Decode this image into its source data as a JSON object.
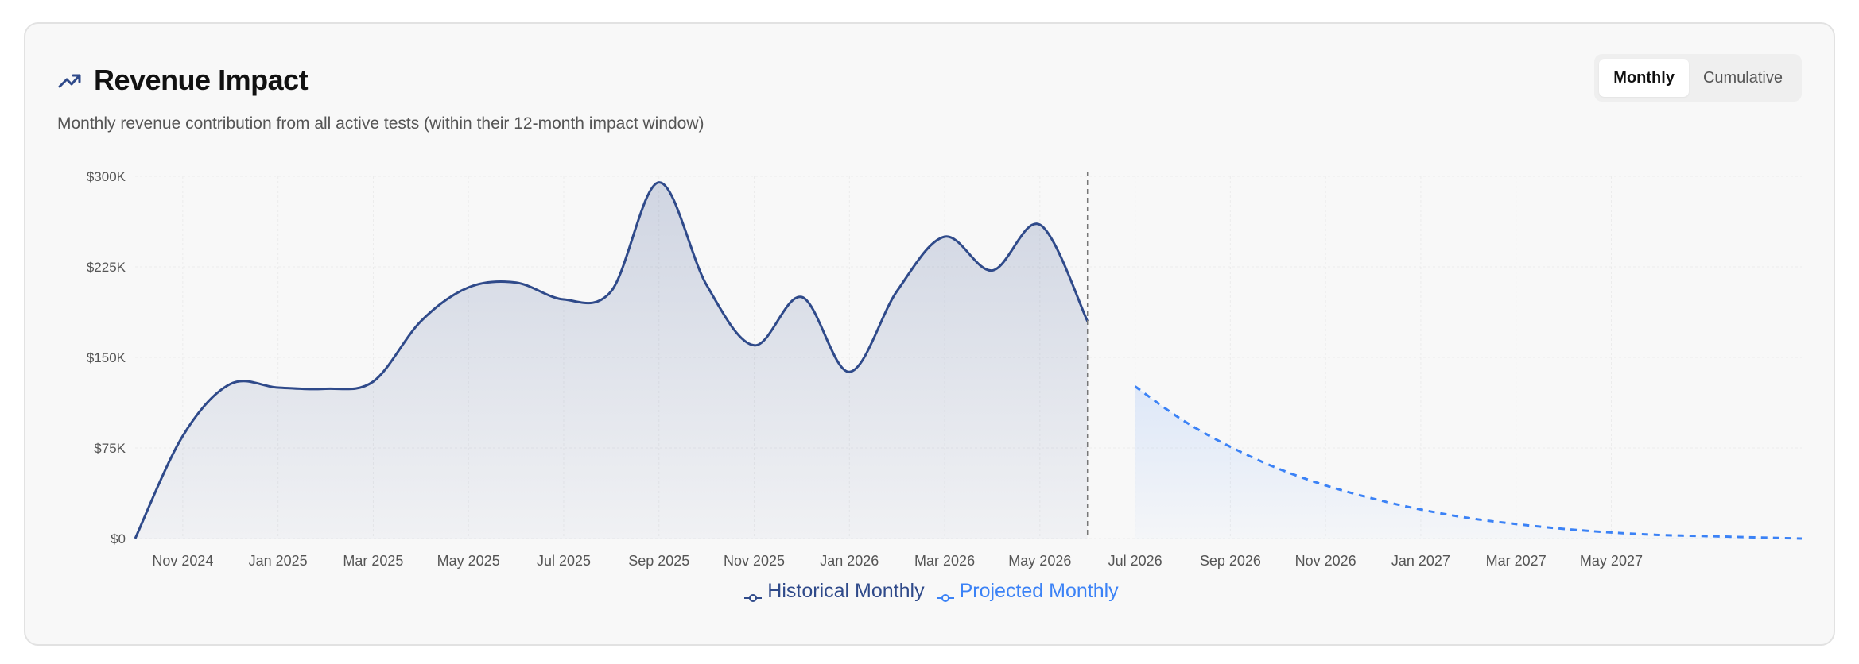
{
  "header": {
    "title": "Revenue Impact",
    "subtitle": "Monthly revenue contribution from all active tests (within their 12-month impact window)",
    "icon": "trending-up-icon"
  },
  "view_toggle": {
    "options": [
      "Monthly",
      "Cumulative"
    ],
    "selected": "Monthly"
  },
  "colors": {
    "historical": "#2f4a8a",
    "projected": "#3b82f6",
    "grid": "#ececec",
    "axis_text": "#555555"
  },
  "chart_data": {
    "type": "area",
    "ylim": [
      0,
      300000
    ],
    "y_ticks": [
      0,
      75000,
      150000,
      225000,
      300000
    ],
    "y_tick_labels": [
      "$0",
      "$75K",
      "$150K",
      "$225K",
      "$300K"
    ],
    "x_tick_labels": [
      "Nov 2024",
      "Jan 2025",
      "Mar 2025",
      "May 2025",
      "Jul 2025",
      "Sep 2025",
      "Nov 2025",
      "Jan 2026",
      "Mar 2026",
      "May 2026",
      "Jul 2026",
      "Sep 2026",
      "Nov 2026",
      "Jan 2027",
      "Mar 2027",
      "May 2027"
    ],
    "grid": true,
    "legend_position": "bottom",
    "divider_at": "May 2026",
    "series": [
      {
        "name": "Historical Monthly",
        "style": "solid",
        "points": [
          [
            "Oct 2024",
            0
          ],
          [
            "Nov 2024",
            85000
          ],
          [
            "Dec 2024",
            128000
          ],
          [
            "Jan 2025",
            125000
          ],
          [
            "Feb 2025",
            124000
          ],
          [
            "Mar 2025",
            130000
          ],
          [
            "Apr 2025",
            180000
          ],
          [
            "May 2025",
            208000
          ],
          [
            "Jun 2025",
            212000
          ],
          [
            "Jul 2025",
            198000
          ],
          [
            "Aug 2025",
            205000
          ],
          [
            "Sep 2025",
            295000
          ],
          [
            "Oct 2025",
            210000
          ],
          [
            "Nov 2025",
            160000
          ],
          [
            "Dec 2025",
            200000
          ],
          [
            "Jan 2026",
            138000
          ],
          [
            "Feb 2026",
            205000
          ],
          [
            "Mar 2026",
            250000
          ],
          [
            "Apr 2026",
            222000
          ],
          [
            "May 2026",
            260000
          ],
          [
            "Jun 2026",
            180000
          ]
        ]
      },
      {
        "name": "Projected Monthly",
        "style": "dashed",
        "points": [
          [
            "Jul 2026",
            126000
          ],
          [
            "Aug 2026",
            98000
          ],
          [
            "Sep 2026",
            76000
          ],
          [
            "Oct 2026",
            58000
          ],
          [
            "Nov 2026",
            44000
          ],
          [
            "Dec 2026",
            33000
          ],
          [
            "Jan 2027",
            24000
          ],
          [
            "Feb 2027",
            17000
          ],
          [
            "Mar 2027",
            12000
          ],
          [
            "Apr 2027",
            8000
          ],
          [
            "May 2027",
            5000
          ],
          [
            "Jun 2027",
            3000
          ],
          [
            "Jul 2027",
            2000
          ],
          [
            "Aug 2027",
            1000
          ],
          [
            "Sep 2027",
            0
          ]
        ]
      }
    ]
  }
}
